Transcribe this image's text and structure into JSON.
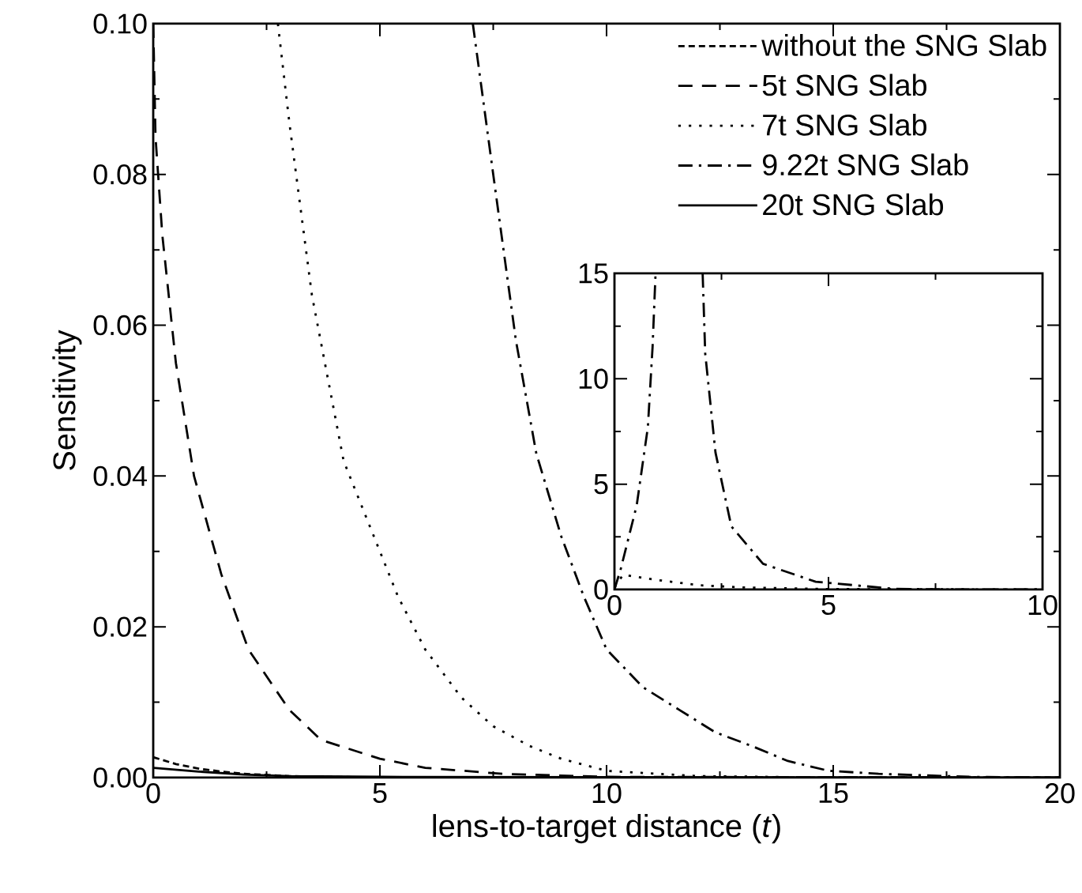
{
  "chart_data": [
    {
      "type": "line",
      "xlabel": "lens-to-target distance (*t*)",
      "ylabel": "Sensitivity",
      "xlim": [
        0,
        20
      ],
      "ylim": [
        0,
        0.1
      ],
      "xticks": [
        0,
        5,
        10,
        15,
        20
      ],
      "yticks": [
        {
          "value": 0,
          "label": "0.00"
        },
        {
          "value": 0.02,
          "label": "0.02"
        },
        {
          "value": 0.04,
          "label": "0.04"
        },
        {
          "value": 0.06,
          "label": "0.06"
        },
        {
          "value": 0.08,
          "label": "0.08"
        },
        {
          "value": 0.1,
          "label": "0.10"
        }
      ],
      "legend": "top right",
      "grid": false,
      "series": [
        {
          "name": "without the SNG Slab",
          "color": "#000000",
          "line_style": "shortdashed",
          "x": [
            0,
            0.5,
            1,
            1.5,
            2,
            3,
            4,
            5,
            10,
            20
          ],
          "values": [
            0.0027,
            0.0018,
            0.0012,
            0.0008,
            0.0005,
            0.0002,
            0.0001,
            0,
            0,
            0
          ]
        },
        {
          "name": "5t SNG Slab",
          "color": "#000000",
          "line_style": "dashed",
          "x": [
            0,
            0.05,
            0.2,
            0.5,
            0.9,
            1.5,
            2.1,
            3,
            3.7,
            5,
            6,
            7.7,
            10,
            20
          ],
          "values": [
            0.1,
            0.085,
            0.072,
            0.055,
            0.04,
            0.027,
            0.017,
            0.009,
            0.005,
            0.0025,
            0.0013,
            0.0005,
            0.0001,
            0
          ]
        },
        {
          "name": "7t SNG Slab",
          "color": "#000000",
          "line_style": "dotted",
          "x": [
            2.75,
            3,
            3.5,
            4.2,
            5,
            5.4,
            6,
            6.8,
            7.5,
            8.3,
            9,
            10,
            12,
            15,
            20
          ],
          "values": [
            0.1,
            0.087,
            0.064,
            0.042,
            0.03,
            0.024,
            0.017,
            0.0106,
            0.0068,
            0.0042,
            0.0025,
            0.0009,
            0.0002,
            0,
            0
          ]
        },
        {
          "name": "9.22t SNG Slab",
          "color": "#000000",
          "line_style": "dashdot",
          "x": [
            7.05,
            7.5,
            8,
            8.45,
            9,
            9.5,
            10,
            10.8,
            11.6,
            12.4,
            13.2,
            14,
            14.9,
            16,
            18,
            20
          ],
          "values": [
            0.1,
            0.08,
            0.058,
            0.043,
            0.032,
            0.024,
            0.017,
            0.012,
            0.009,
            0.006,
            0.0042,
            0.0022,
            0.0009,
            0.0005,
            0.0001,
            0
          ]
        },
        {
          "name": "20t SNG Slab",
          "color": "#000000",
          "line_style": "solid",
          "x": [
            0,
            1,
            2,
            3,
            5,
            20
          ],
          "values": [
            0.0013,
            0.0008,
            0.0004,
            0.0002,
            0.0001,
            0
          ]
        }
      ]
    },
    {
      "type": "line",
      "xlim": [
        0,
        10
      ],
      "ylim": [
        0,
        15
      ],
      "xticks": [
        0,
        5,
        10
      ],
      "yticks": [
        0,
        5,
        10,
        15
      ],
      "legend": false,
      "grid": false,
      "series": [
        {
          "color": "#000000",
          "line_style": "dashdot",
          "x": [
            0,
            0.15,
            0.52,
            0.78,
            0.89,
            0.96,
            1.5,
            2.06,
            2.12,
            2.36,
            2.73,
            3.47,
            4.7,
            6.55,
            8,
            10
          ],
          "values": [
            0,
            1.0,
            4.0,
            7.7,
            11.5,
            15,
            null,
            15,
            11.2,
            6.5,
            3.0,
            1.22,
            0.37,
            0.03,
            0,
            0
          ]
        },
        {
          "color": "#000000",
          "line_style": "dotted",
          "x": [
            0,
            0.2,
            1,
            2,
            3,
            5,
            10
          ],
          "values": [
            0.1,
            0.7,
            0.45,
            0.2,
            0.1,
            0.02,
            0
          ]
        }
      ]
    }
  ]
}
